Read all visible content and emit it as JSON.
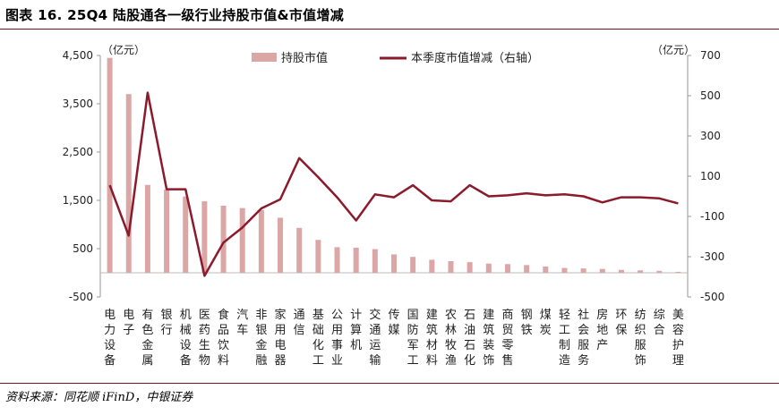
{
  "figure": {
    "title": "图表 16. 25Q4 陆股通各一级行业持股市值&市值增减",
    "source": "资料来源：同花顺 iFinD，中银证券"
  },
  "chart_data": {
    "type": "bar",
    "categories": [
      "电力设备",
      "电子",
      "有色金属",
      "银行",
      "机械设备",
      "医药生物",
      "食品饮料",
      "汽车",
      "非银金融",
      "家用电器",
      "通信",
      "基础化工",
      "公用事业",
      "计算机",
      "交通运输",
      "传媒",
      "国防军工",
      "建筑材料",
      "农林牧渔",
      "石油石化",
      "建筑装饰",
      "商贸零售",
      "钢铁",
      "煤炭",
      "轻工制造",
      "社会服务",
      "房地产",
      "环保",
      "纺织服饰",
      "综合",
      "美容护理"
    ],
    "y_left_unit": "（亿元）",
    "y_right_unit": "（亿元）",
    "y_left_range": [
      -500,
      4500
    ],
    "y_left_ticks": [
      -500,
      500,
      1500,
      2500,
      3500,
      4500
    ],
    "y_left_tick_labels": [
      "-500",
      "500",
      "1,500",
      "2,500",
      "3,500",
      "4,500"
    ],
    "y_right_range": [
      -500,
      700
    ],
    "y_right_ticks": [
      -500,
      -300,
      -100,
      100,
      300,
      500,
      700
    ],
    "y_right_tick_labels": [
      "-500",
      "-300",
      "-100",
      "100",
      "300",
      "500",
      "700"
    ],
    "legend_placement": "top",
    "series": [
      {
        "name": "持股市值",
        "type": "bar",
        "axis": "left",
        "color": "#dba6a6",
        "values": [
          4450,
          3700,
          1820,
          1720,
          1580,
          1480,
          1390,
          1340,
          1300,
          1140,
          930,
          680,
          530,
          520,
          490,
          380,
          330,
          270,
          240,
          220,
          190,
          180,
          160,
          130,
          100,
          90,
          80,
          60,
          50,
          40,
          20
        ]
      },
      {
        "name": "本季度市值增减（右轴）",
        "type": "line",
        "axis": "right",
        "color": "#8b1a2b",
        "values": [
          55,
          -195,
          515,
          35,
          35,
          -395,
          -230,
          -155,
          -60,
          -15,
          190,
          95,
          -5,
          -120,
          10,
          -5,
          55,
          -20,
          -25,
          55,
          0,
          5,
          15,
          5,
          10,
          0,
          -30,
          -5,
          -5,
          -10,
          -35
        ]
      }
    ]
  }
}
